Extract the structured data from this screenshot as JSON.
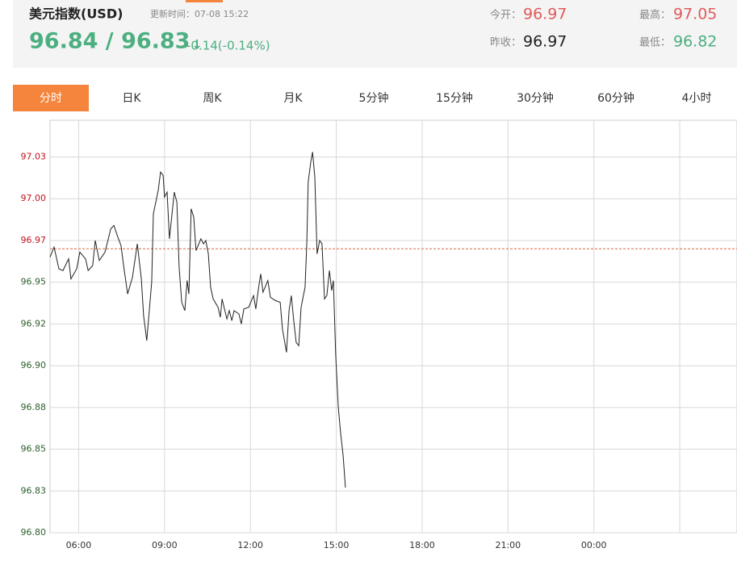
{
  "header": {
    "title": "美元指数(USD)",
    "update": "更新时间：07-08 15:22",
    "price": "96.84 / 96.83",
    "arrow": "↓",
    "change": "-0.14(-0.14%)",
    "stats": [
      {
        "label": "今开：",
        "value": 96.97
      },
      {
        "label": "昨收：",
        "value": 96.97
      },
      {
        "label": "最高：",
        "value": 97.05
      },
      {
        "label": "最低：",
        "value": 96.82
      }
    ]
  },
  "tabs": [
    "分时",
    "日K",
    "周K",
    "月K",
    "5分钟",
    "15分钟",
    "30分钟",
    "60分钟",
    "4小时"
  ],
  "chart_data": {
    "type": "line",
    "color": "#222222",
    "grid": true,
    "xlim": [
      5,
      29
    ],
    "xticks": [
      {
        "value": 6,
        "label": "06:00"
      },
      {
        "value": 9,
        "label": "09:00"
      },
      {
        "value": 12,
        "label": "12:00"
      },
      {
        "value": 15,
        "label": "15:00"
      },
      {
        "value": 18,
        "label": "18:00"
      },
      {
        "value": 21,
        "label": "21:00"
      },
      {
        "value": 24,
        "label": "00:00"
      },
      {
        "value": 27,
        "label": null
      }
    ],
    "ylim": [
      96.8,
      97.047
    ],
    "yticks": [
      {
        "value": 96.8,
        "label": "96.80"
      },
      {
        "value": 96.825,
        "label": "96.83"
      },
      96.85,
      {
        "value": 96.875,
        "label": "96.88"
      },
      {
        "value": 96.9,
        "label": "96.90"
      },
      {
        "value": 96.925,
        "label": "96.92"
      },
      96.95,
      {
        "value": 96.975,
        "label": "96.97"
      },
      {
        "value": 97.0,
        "label": "97.00"
      },
      {
        "value": 97.025,
        "label": "97.03"
      }
    ],
    "x": [
      5.0,
      5.14,
      5.31,
      5.45,
      5.65,
      5.73,
      5.93,
      6.04,
      6.24,
      6.33,
      6.49,
      6.58,
      6.72,
      6.92,
      7.12,
      7.23,
      7.37,
      7.48,
      7.57,
      7.71,
      7.88,
      8.05,
      8.19,
      8.27,
      8.38,
      8.55,
      8.61,
      8.78,
      8.86,
      8.95,
      9.0,
      9.09,
      9.17,
      9.34,
      9.43,
      9.51,
      9.6,
      9.71,
      9.79,
      9.85,
      9.93,
      10.02,
      10.1,
      10.27,
      10.36,
      10.44,
      10.53,
      10.61,
      10.7,
      10.87,
      10.95,
      11.01,
      11.18,
      11.26,
      11.35,
      11.43,
      11.6,
      11.68,
      11.77,
      11.94,
      12.11,
      12.19,
      12.28,
      12.36,
      12.44,
      12.61,
      12.7,
      12.87,
      13.04,
      13.12,
      13.26,
      13.35,
      13.43,
      13.52,
      13.6,
      13.69,
      13.77,
      13.91,
      13.97,
      14.02,
      14.11,
      14.17,
      14.25,
      14.33,
      14.42,
      14.5,
      14.59,
      14.67,
      14.76,
      14.84,
      14.9,
      14.98,
      15.07,
      15.15,
      15.24,
      15.29,
      15.32
    ],
    "values": [
      96.965,
      96.971,
      96.958,
      96.957,
      96.964,
      96.952,
      96.958,
      96.968,
      96.964,
      96.957,
      96.96,
      96.975,
      96.963,
      96.968,
      96.982,
      96.984,
      96.977,
      96.972,
      96.96,
      96.943,
      96.953,
      96.973,
      96.952,
      96.93,
      96.915,
      96.95,
      96.991,
      97.005,
      97.016,
      97.014,
      97.001,
      97.004,
      96.976,
      97.004,
      96.998,
      96.959,
      96.938,
      96.933,
      96.951,
      96.943,
      96.994,
      96.989,
      96.969,
      96.976,
      96.973,
      96.975,
      96.967,
      96.947,
      96.94,
      96.935,
      96.929,
      96.94,
      96.928,
      96.933,
      96.927,
      96.933,
      96.931,
      96.925,
      96.934,
      96.935,
      96.942,
      96.934,
      96.946,
      96.955,
      96.944,
      96.951,
      96.941,
      96.939,
      96.938,
      96.922,
      96.908,
      96.933,
      96.942,
      96.926,
      96.914,
      96.912,
      96.935,
      96.947,
      96.974,
      97.01,
      97.022,
      97.028,
      97.013,
      96.967,
      96.975,
      96.973,
      96.94,
      96.942,
      96.957,
      96.945,
      96.951,
      96.906,
      96.875,
      96.86,
      96.846,
      96.834,
      96.827
    ]
  }
}
